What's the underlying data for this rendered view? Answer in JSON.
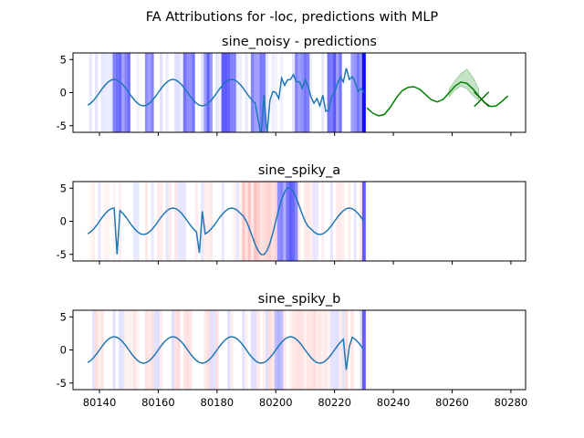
{
  "figure": {
    "suptitle": "FA Attributions for -loc, predictions with MLP"
  },
  "chart_data": [
    {
      "type": "line",
      "title": "sine_noisy - predictions",
      "xlim": [
        80131,
        80285
      ],
      "ylim": [
        -6,
        6
      ],
      "xticks": [
        80140,
        80160,
        80180,
        80200,
        80220,
        80240,
        80260,
        80280
      ],
      "yticks": [
        5,
        0,
        -5
      ],
      "show_xtick_labels": false,
      "signal": {
        "x_start": 80136,
        "x_end": 80230,
        "style": "sine_noisy",
        "color": "#1f77b4"
      },
      "forecast_start": 80231,
      "forecast": {
        "color": "#008000",
        "x": [
          80231,
          80233,
          80235,
          80237,
          80239,
          80241,
          80243,
          80245,
          80247,
          80249,
          80251,
          80253,
          80255,
          80257,
          80259,
          80261,
          80263,
          80265,
          80267,
          80269,
          80271,
          80273,
          80275,
          80277,
          80279
        ],
        "y": [
          -2.3,
          -3.1,
          -3.5,
          -3.3,
          -2.2,
          -0.8,
          0.3,
          0.8,
          0.9,
          0.5,
          -0.3,
          -1.1,
          -1.4,
          -1.0,
          0.0,
          1.0,
          1.6,
          1.4,
          0.6,
          -0.5,
          -1.5,
          -2.1,
          -2.0,
          -1.3,
          -0.5
        ]
      },
      "interval_x": [
        80259,
        80261,
        80263,
        80265,
        80267,
        80269
      ],
      "interval_low": [
        -0.6,
        0.4,
        1.0,
        0.6,
        -0.4,
        -1.2
      ],
      "interval_high": [
        0.6,
        1.8,
        2.9,
        3.5,
        2.4,
        0.6
      ],
      "marker": {
        "x": 80270,
        "y": -1.0,
        "symbol": "x"
      },
      "attribution_colors": {
        "positive": "#ff0000",
        "negative": "#0000ff"
      }
    },
    {
      "type": "line",
      "title": "sine_spiky_a",
      "xlim": [
        80131,
        80285
      ],
      "ylim": [
        -6,
        6
      ],
      "xticks": [
        80140,
        80160,
        80180,
        80200,
        80220,
        80240,
        80260,
        80280
      ],
      "yticks": [
        5,
        0,
        -5
      ],
      "show_xtick_labels": false,
      "signal": {
        "x_start": 80136,
        "x_end": 80230,
        "style": "sine_spiky_a",
        "color": "#1f77b4"
      },
      "attribution_colors": {
        "positive": "#ff0000",
        "negative": "#0000ff"
      }
    },
    {
      "type": "line",
      "title": "sine_spiky_b",
      "xlim": [
        80131,
        80285
      ],
      "ylim": [
        -6,
        6
      ],
      "xticks": [
        80140,
        80160,
        80180,
        80200,
        80220,
        80240,
        80260,
        80280
      ],
      "xtick_labels": [
        "80140",
        "80160",
        "80180",
        "80200",
        "80220",
        "80240",
        "80260",
        "80280"
      ],
      "yticks": [
        5,
        0,
        -5
      ],
      "show_xtick_labels": true,
      "signal": {
        "x_start": 80136,
        "x_end": 80230,
        "style": "sine_spiky_b",
        "color": "#1f77b4"
      },
      "attribution_colors": {
        "positive": "#ff0000",
        "negative": "#0000ff"
      }
    }
  ]
}
